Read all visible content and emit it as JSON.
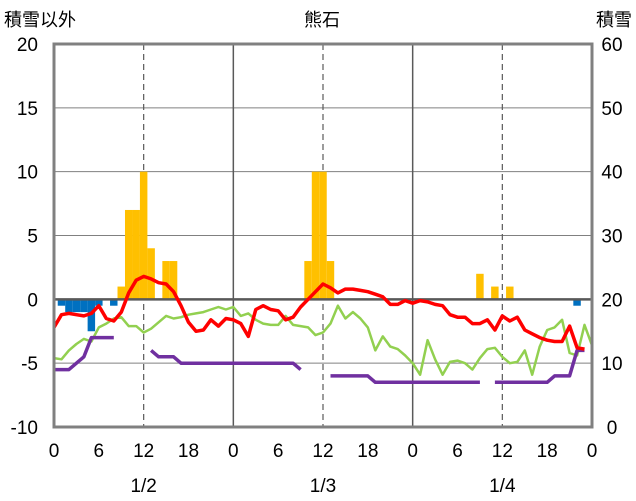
{
  "chart_data": {
    "type": "bar",
    "title": "熊石",
    "left_axis_label": "積雪以外",
    "right_axis_label": "積雪",
    "left_ylim": [
      -10,
      20
    ],
    "right_ylim": [
      0,
      60
    ],
    "left_ticks": [
      "-10",
      "-5",
      "0",
      "5",
      "10",
      "15",
      "20"
    ],
    "right_ticks": [
      "0",
      "10",
      "20",
      "30",
      "40",
      "50",
      "60"
    ],
    "x_tick_labels": [
      "0",
      "6",
      "12",
      "18",
      "0",
      "6",
      "12",
      "18",
      "0",
      "6",
      "12",
      "18",
      "0"
    ],
    "date_labels": [
      "1/2",
      "1/3",
      "1/4"
    ],
    "colors": {
      "snowfall_bars": "#FFC000",
      "precip_bars": "#0070C0",
      "red_line": "#FF0000",
      "green_line": "#92D050",
      "purple_line": "#7030A0",
      "axis": "#808080",
      "zero_line": "#595959"
    },
    "snowfall_bars": [
      {
        "x": 9,
        "y": 1.0
      },
      {
        "x": 10,
        "y": 7.0
      },
      {
        "x": 11,
        "y": 7.0
      },
      {
        "x": 12,
        "y": 10.0
      },
      {
        "x": 13,
        "y": 4.0
      },
      {
        "x": 15,
        "y": 3.0
      },
      {
        "x": 16,
        "y": 3.0
      },
      {
        "x": 34,
        "y": 3.0
      },
      {
        "x": 35,
        "y": 10.0
      },
      {
        "x": 36,
        "y": 10.0
      },
      {
        "x": 37,
        "y": 3.0
      },
      {
        "x": 57,
        "y": 2.0
      },
      {
        "x": 59,
        "y": 1.0
      },
      {
        "x": 61,
        "y": 1.0
      }
    ],
    "precip_bars": [
      {
        "x": 1,
        "y": -0.5
      },
      {
        "x": 2,
        "y": -1.0
      },
      {
        "x": 3,
        "y": -1.0
      },
      {
        "x": 4,
        "y": -1.0
      },
      {
        "x": 5,
        "y": -2.5
      },
      {
        "x": 6,
        "y": -0.5
      },
      {
        "x": 8,
        "y": -0.5
      },
      {
        "x": 70,
        "y": -0.5
      }
    ],
    "red_line": [
      [
        0,
        -2.2
      ],
      [
        1,
        -1.2
      ],
      [
        2,
        -1.1
      ],
      [
        3,
        -1.2
      ],
      [
        4,
        -1.3
      ],
      [
        5,
        -1.1
      ],
      [
        6,
        -0.5
      ],
      [
        7,
        -1.5
      ],
      [
        8,
        -1.7
      ],
      [
        9,
        -1.0
      ],
      [
        10,
        0.5
      ],
      [
        11,
        1.5
      ],
      [
        12,
        1.8
      ],
      [
        13,
        1.6
      ],
      [
        14,
        1.3
      ],
      [
        15,
        1.2
      ],
      [
        16,
        0.6
      ],
      [
        17,
        -0.5
      ],
      [
        18,
        -1.8
      ],
      [
        19,
        -2.5
      ],
      [
        20,
        -2.4
      ],
      [
        21,
        -1.6
      ],
      [
        22,
        -2.1
      ],
      [
        23,
        -1.5
      ],
      [
        24,
        -1.6
      ],
      [
        25,
        -1.9
      ],
      [
        26,
        -2.9
      ],
      [
        27,
        -0.8
      ],
      [
        28,
        -0.5
      ],
      [
        29,
        -0.8
      ],
      [
        30,
        -0.9
      ],
      [
        31,
        -1.6
      ],
      [
        32,
        -1.4
      ],
      [
        33,
        -0.6
      ],
      [
        34,
        0.0
      ],
      [
        35,
        0.6
      ],
      [
        36,
        1.2
      ],
      [
        37,
        0.9
      ],
      [
        38,
        0.5
      ],
      [
        39,
        0.8
      ],
      [
        40,
        0.8
      ],
      [
        41,
        0.7
      ],
      [
        42,
        0.6
      ],
      [
        43,
        0.4
      ],
      [
        44,
        0.2
      ],
      [
        45,
        -0.4
      ],
      [
        46,
        -0.4
      ],
      [
        47,
        -0.1
      ],
      [
        48,
        -0.3
      ],
      [
        49,
        -0.1
      ],
      [
        50,
        -0.2
      ],
      [
        51,
        -0.4
      ],
      [
        52,
        -0.5
      ],
      [
        53,
        -1.2
      ],
      [
        54,
        -1.4
      ],
      [
        55,
        -1.4
      ],
      [
        56,
        -1.9
      ],
      [
        57,
        -1.9
      ],
      [
        58,
        -1.6
      ],
      [
        59,
        -2.4
      ],
      [
        60,
        -1.3
      ],
      [
        61,
        -1.7
      ],
      [
        62,
        -1.4
      ],
      [
        63,
        -2.4
      ],
      [
        64,
        -2.7
      ],
      [
        65,
        -3.0
      ],
      [
        66,
        -3.2
      ],
      [
        67,
        -3.3
      ],
      [
        68,
        -3.3
      ],
      [
        69,
        -2.1
      ],
      [
        70,
        -3.8
      ],
      [
        71,
        -3.9
      ]
    ],
    "green_line": [
      [
        0,
        -4.6
      ],
      [
        1,
        -4.7
      ],
      [
        2,
        -4.0
      ],
      [
        3,
        -3.5
      ],
      [
        4,
        -3.1
      ],
      [
        5,
        -3.3
      ],
      [
        6,
        -2.2
      ],
      [
        7,
        -1.9
      ],
      [
        8,
        -1.5
      ],
      [
        9,
        -1.4
      ],
      [
        10,
        -2.1
      ],
      [
        11,
        -2.1
      ],
      [
        12,
        -2.6
      ],
      [
        13,
        -2.3
      ],
      [
        14,
        -1.8
      ],
      [
        15,
        -1.3
      ],
      [
        16,
        -1.5
      ],
      [
        17,
        -1.4
      ],
      [
        18,
        -1.2
      ],
      [
        19,
        -1.1
      ],
      [
        20,
        -1.0
      ],
      [
        21,
        -0.8
      ],
      [
        22,
        -0.6
      ],
      [
        23,
        -0.8
      ],
      [
        24,
        -0.6
      ],
      [
        25,
        -1.3
      ],
      [
        26,
        -1.1
      ],
      [
        27,
        -1.6
      ],
      [
        28,
        -1.9
      ],
      [
        29,
        -2.0
      ],
      [
        30,
        -2.0
      ],
      [
        31,
        -1.3
      ],
      [
        32,
        -2.0
      ],
      [
        33,
        -2.1
      ],
      [
        34,
        -2.2
      ],
      [
        35,
        -2.8
      ],
      [
        36,
        -2.6
      ],
      [
        37,
        -1.9
      ],
      [
        38,
        -0.5
      ],
      [
        39,
        -1.5
      ],
      [
        40,
        -1.0
      ],
      [
        41,
        -1.5
      ],
      [
        42,
        -2.2
      ],
      [
        43,
        -4.0
      ],
      [
        44,
        -2.9
      ],
      [
        45,
        -3.7
      ],
      [
        46,
        -3.9
      ],
      [
        47,
        -4.4
      ],
      [
        48,
        -5.0
      ],
      [
        49,
        -5.9
      ],
      [
        50,
        -3.2
      ],
      [
        51,
        -4.7
      ],
      [
        52,
        -5.9
      ],
      [
        53,
        -4.9
      ],
      [
        54,
        -4.8
      ],
      [
        55,
        -5.0
      ],
      [
        56,
        -5.5
      ],
      [
        57,
        -4.6
      ],
      [
        58,
        -3.9
      ],
      [
        59,
        -3.8
      ],
      [
        60,
        -4.5
      ],
      [
        61,
        -5.0
      ],
      [
        62,
        -4.9
      ],
      [
        63,
        -4.0
      ],
      [
        64,
        -5.9
      ],
      [
        65,
        -3.7
      ],
      [
        66,
        -2.4
      ],
      [
        67,
        -2.2
      ],
      [
        68,
        -1.6
      ],
      [
        69,
        -4.2
      ],
      [
        70,
        -4.4
      ],
      [
        71,
        -2.0
      ],
      [
        72,
        -3.6
      ]
    ],
    "purple_segments": [
      [
        [
          0,
          9
        ],
        [
          2,
          9
        ],
        [
          4,
          11
        ],
        [
          5,
          14
        ],
        [
          8,
          14
        ]
      ],
      [
        [
          13,
          12
        ],
        [
          14,
          11
        ],
        [
          16,
          11
        ],
        [
          17,
          10
        ],
        [
          32,
          10
        ],
        [
          33,
          9
        ]
      ],
      [
        [
          37,
          8
        ],
        [
          42,
          8
        ],
        [
          43,
          7
        ],
        [
          57,
          7
        ]
      ],
      [
        [
          59,
          7
        ],
        [
          66,
          7
        ],
        [
          67,
          8
        ],
        [
          69,
          8
        ],
        [
          70,
          12
        ],
        [
          71,
          12
        ]
      ]
    ]
  }
}
